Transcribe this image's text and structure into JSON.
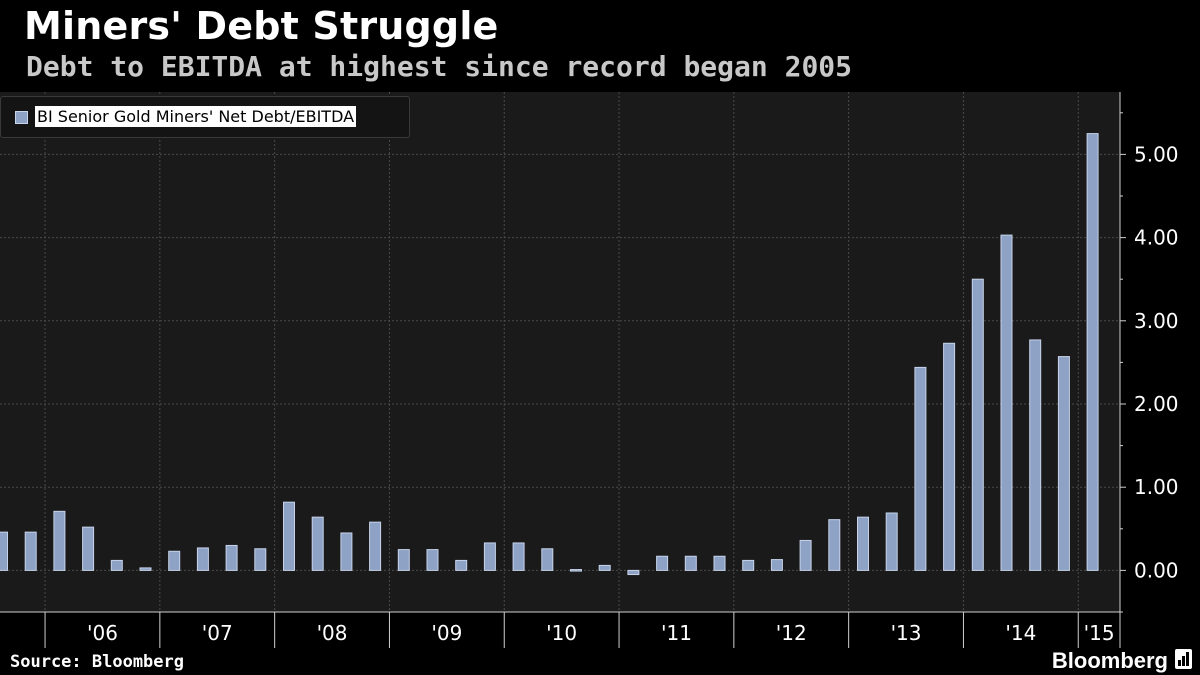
{
  "title": "Miners' Debt Struggle",
  "subtitle": "Debt to EBITDA at highest since record began 2005",
  "source": "Source: Bloomberg",
  "brand": "Bloomberg",
  "brand_icon": "bar-chart-icon",
  "colors": {
    "background": "#000000",
    "plot_background": "#1a1a1a",
    "bar_fill": "#8da2c4",
    "bar_stroke": "#c7d3ea",
    "grid": "#4a4a4a",
    "text": "#ffffff"
  },
  "chart_data": {
    "type": "bar",
    "title": "Miners' Debt Struggle",
    "subtitle": "Debt to EBITDA at highest since record began 2005",
    "xlabel": "",
    "ylabel": "",
    "ylim": [
      -0.5,
      5.75
    ],
    "yticks": [
      0,
      1,
      2,
      3,
      4,
      5
    ],
    "ytick_labels": [
      "0.00",
      "1.00",
      "2.00",
      "3.00",
      "4.00",
      "5.00"
    ],
    "grid": true,
    "legend_position": "top-left",
    "year_labels": [
      "'06",
      "'07",
      "'08",
      "'09",
      "'10",
      "'11",
      "'12",
      "'13",
      "'14",
      "'15"
    ],
    "series": [
      {
        "name": "BI Senior Gold Miners' Net Debt/EBITDA",
        "x": [
          "2005-Q3",
          "2005-Q4",
          "2006-Q1",
          "2006-Q2",
          "2006-Q3",
          "2006-Q4",
          "2007-Q1",
          "2007-Q2",
          "2007-Q3",
          "2007-Q4",
          "2008-Q1",
          "2008-Q2",
          "2008-Q3",
          "2008-Q4",
          "2009-Q1",
          "2009-Q2",
          "2009-Q3",
          "2009-Q4",
          "2010-Q1",
          "2010-Q2",
          "2010-Q3",
          "2010-Q4",
          "2011-Q1",
          "2011-Q2",
          "2011-Q3",
          "2011-Q4",
          "2012-Q1",
          "2012-Q2",
          "2012-Q3",
          "2012-Q4",
          "2013-Q1",
          "2013-Q2",
          "2013-Q3",
          "2013-Q4",
          "2014-Q1",
          "2014-Q2",
          "2014-Q3",
          "2014-Q4",
          "2015-Q1"
        ],
        "values": [
          0.46,
          0.46,
          0.71,
          0.52,
          0.12,
          0.03,
          0.23,
          0.27,
          0.3,
          0.26,
          0.82,
          0.64,
          0.45,
          0.58,
          0.25,
          0.25,
          0.12,
          0.33,
          0.33,
          0.26,
          0.01,
          0.06,
          -0.05,
          0.17,
          0.17,
          0.17,
          0.12,
          0.13,
          0.36,
          0.61,
          0.64,
          0.69,
          2.44,
          2.73,
          3.5,
          4.03,
          2.77,
          2.57,
          5.25
        ]
      }
    ]
  }
}
